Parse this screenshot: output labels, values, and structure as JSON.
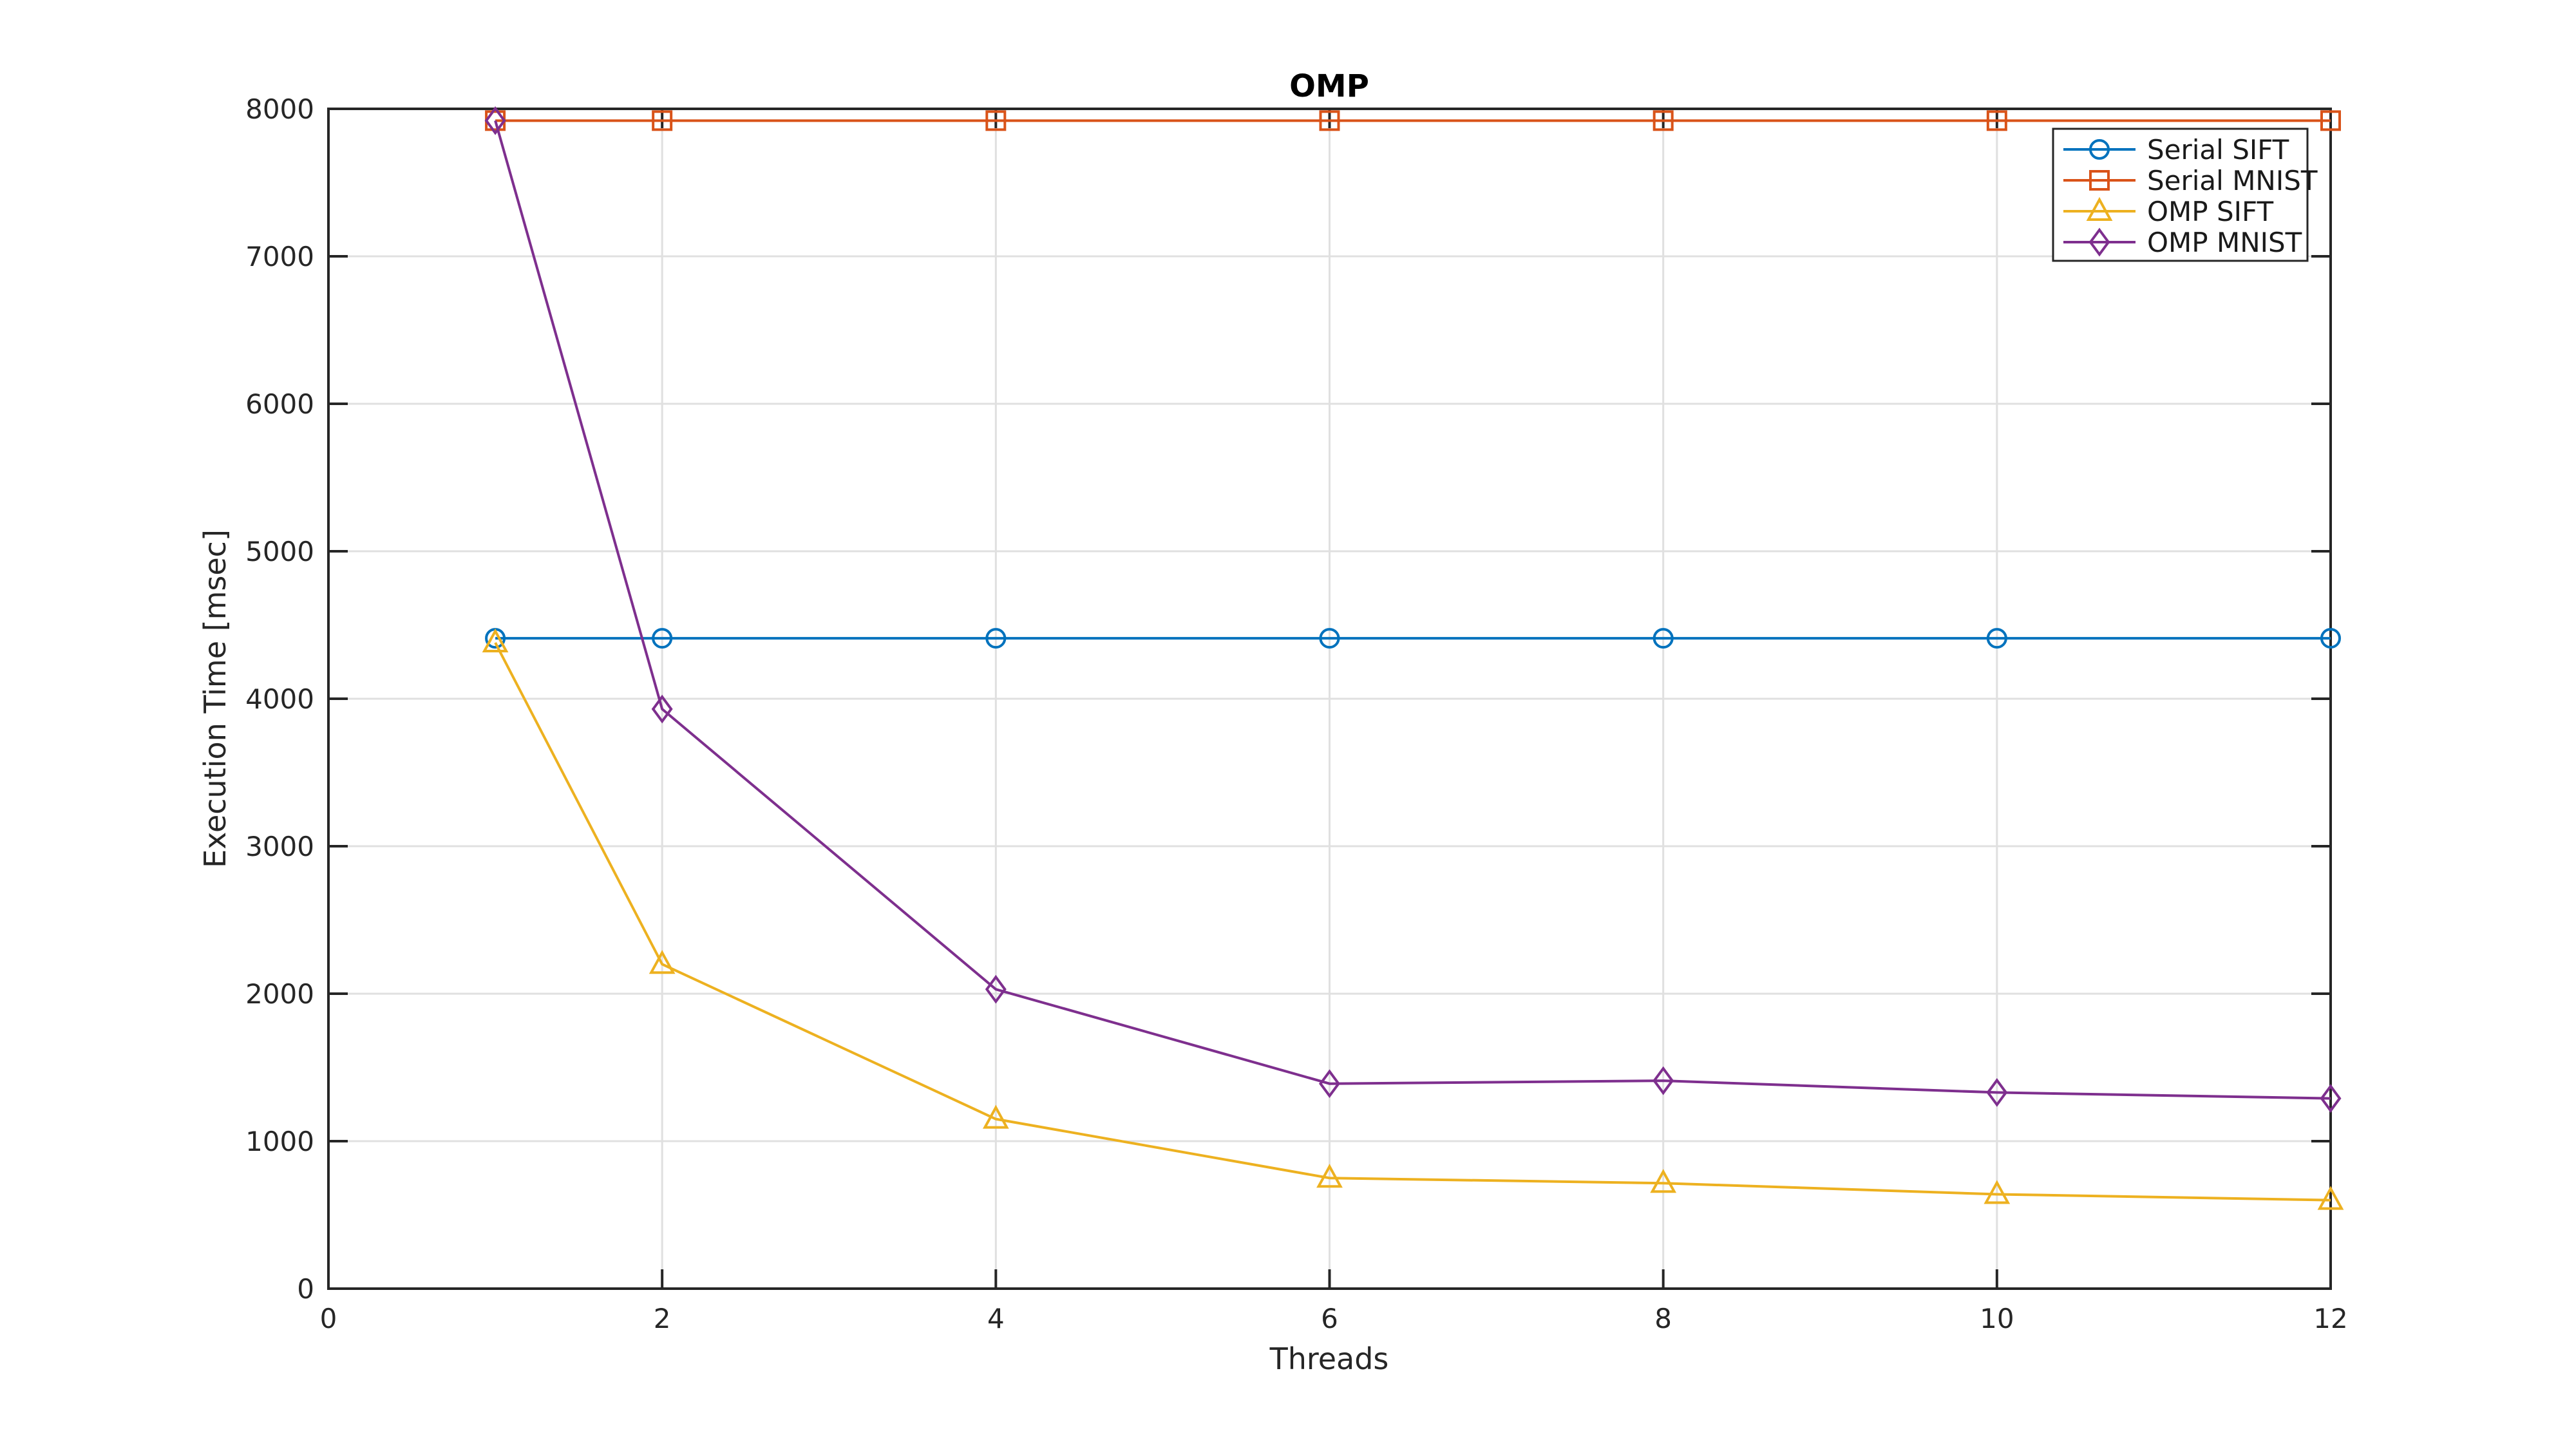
{
  "chart_data": {
    "type": "line",
    "title": "OMP",
    "xlabel": "Threads",
    "ylabel": "Execution Time [msec]",
    "x": [
      1,
      2,
      4,
      6,
      8,
      10,
      12
    ],
    "series": [
      {
        "name": "Serial SIFT",
        "color": "#0072BD",
        "marker": "circle",
        "values": [
          4410,
          4410,
          4410,
          4410,
          4410,
          4410,
          4410
        ]
      },
      {
        "name": "Serial MNIST",
        "color": "#D95319",
        "marker": "square",
        "values": [
          7920,
          7920,
          7920,
          7920,
          7920,
          7920,
          7920
        ]
      },
      {
        "name": "OMP SIFT",
        "color": "#EDB120",
        "marker": "triangle",
        "values": [
          4380,
          2200,
          1150,
          750,
          715,
          640,
          600
        ]
      },
      {
        "name": "OMP MNIST",
        "color": "#7E2F8E",
        "marker": "diamond",
        "values": [
          7920,
          3930,
          2030,
          1390,
          1410,
          1330,
          1290
        ]
      }
    ],
    "xlim": [
      0,
      12
    ],
    "ylim": [
      0,
      8000
    ],
    "xticks": [
      0,
      2,
      4,
      6,
      8,
      10,
      12
    ],
    "yticks": [
      0,
      1000,
      2000,
      3000,
      4000,
      5000,
      6000,
      7000,
      8000
    ],
    "grid": true,
    "legend": {
      "position": "top-right",
      "entries": [
        "Serial SIFT",
        "Serial MNIST",
        "OMP SIFT",
        "OMP MNIST"
      ]
    },
    "colors": {
      "axis": "#262626",
      "grid": "#e0e0e0",
      "title": "#000000",
      "legend_border": "#262626",
      "legend_background": "#ffffff"
    }
  }
}
